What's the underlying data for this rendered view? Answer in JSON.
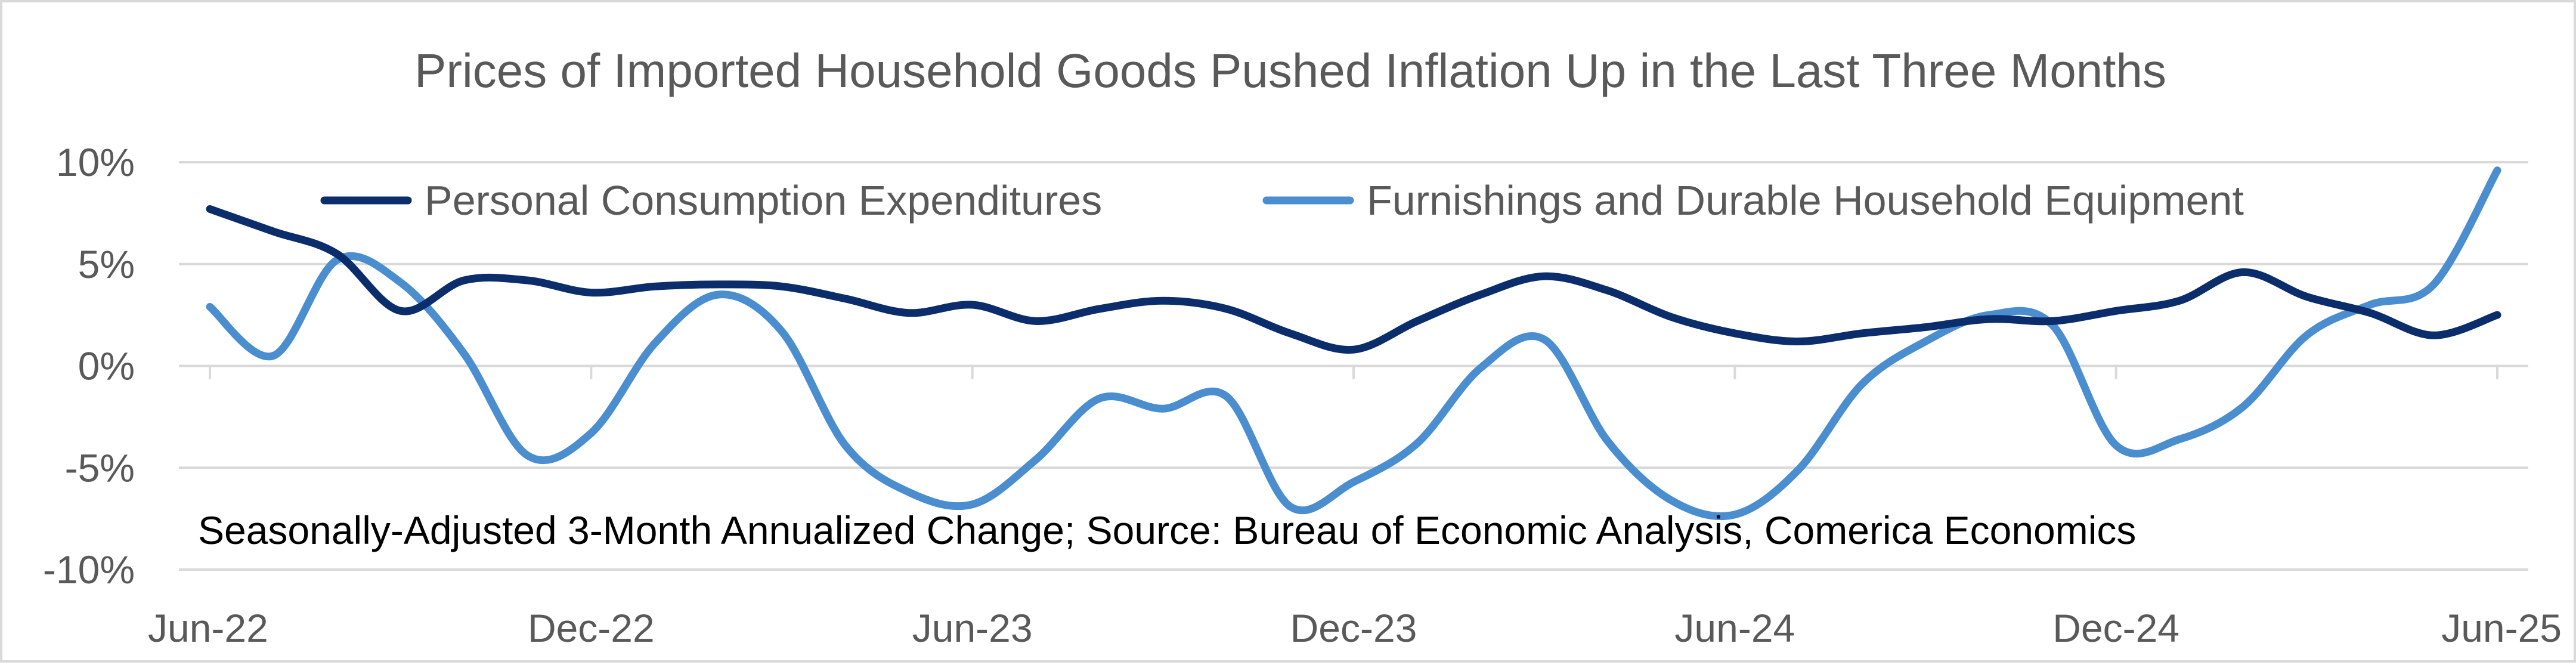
{
  "chart_data": {
    "type": "line",
    "title": "Prices of Imported Household Goods Pushed Inflation Up in the Last Three Months",
    "annotation": "Seasonally-Adjusted 3-Month Annualized Change; Source: Bureau of Economic Analysis, Comerica Economics",
    "xlabel": "",
    "ylabel": "",
    "ylim": [
      -10,
      10
    ],
    "y_ticks": [
      {
        "value": 10,
        "label": "10%"
      },
      {
        "value": 5,
        "label": "5%"
      },
      {
        "value": 0,
        "label": "0%"
      },
      {
        "value": -5,
        "label": "-5%"
      },
      {
        "value": -10,
        "label": "-10%"
      }
    ],
    "x_ticks": [
      {
        "index": 0,
        "label": "Jun-22"
      },
      {
        "index": 6,
        "label": "Dec-22"
      },
      {
        "index": 12,
        "label": "Jun-23"
      },
      {
        "index": 18,
        "label": "Dec-23"
      },
      {
        "index": 24,
        "label": "Jun-24"
      },
      {
        "index": 30,
        "label": "Dec-24"
      },
      {
        "index": 36,
        "label": "Jun-25"
      }
    ],
    "categories": [
      "Jun-22",
      "Jul-22",
      "Aug-22",
      "Sep-22",
      "Oct-22",
      "Nov-22",
      "Dec-22",
      "Jan-23",
      "Feb-23",
      "Mar-23",
      "Apr-23",
      "May-23",
      "Jun-23",
      "Jul-23",
      "Aug-23",
      "Sep-23",
      "Oct-23",
      "Nov-23",
      "Dec-23",
      "Jan-24",
      "Feb-24",
      "Mar-24",
      "Apr-24",
      "May-24",
      "Jun-24",
      "Jul-24",
      "Aug-24",
      "Sep-24",
      "Oct-24",
      "Nov-24",
      "Dec-24",
      "Jan-25",
      "Feb-25",
      "Mar-25",
      "Apr-25",
      "May-25",
      "Jun-25"
    ],
    "grid": true,
    "legend_position": "top",
    "series": [
      {
        "name": "Personal Consumption Expenditures",
        "color": "#0b2d6b",
        "values": [
          7.7,
          6.6,
          5.5,
          2.7,
          4.2,
          4.2,
          3.6,
          3.9,
          4.0,
          3.9,
          3.3,
          2.6,
          3.0,
          2.2,
          2.8,
          3.2,
          2.8,
          1.6,
          0.8,
          2.2,
          3.5,
          4.4,
          3.7,
          2.4,
          1.6,
          1.2,
          1.6,
          1.9,
          2.3,
          2.2,
          2.7,
          3.2,
          4.6,
          3.4,
          2.6,
          1.5,
          2.5
        ]
      },
      {
        "name": "Furnishings and Durable Household Equipment",
        "color": "#4a8ed0",
        "values": [
          2.9,
          0.5,
          5.2,
          4.1,
          0.6,
          -4.4,
          -3.3,
          1.1,
          3.5,
          1.7,
          -3.9,
          -6.2,
          -6.8,
          -4.6,
          -1.6,
          -2.1,
          -1.5,
          -6.9,
          -5.7,
          -3.8,
          -0.1,
          1.3,
          -3.7,
          -6.6,
          -7.3,
          -5.1,
          -0.9,
          1.2,
          2.5,
          2.0,
          -3.9,
          -3.6,
          -2.0,
          1.5,
          3.0,
          4.0,
          9.6
        ]
      }
    ]
  }
}
